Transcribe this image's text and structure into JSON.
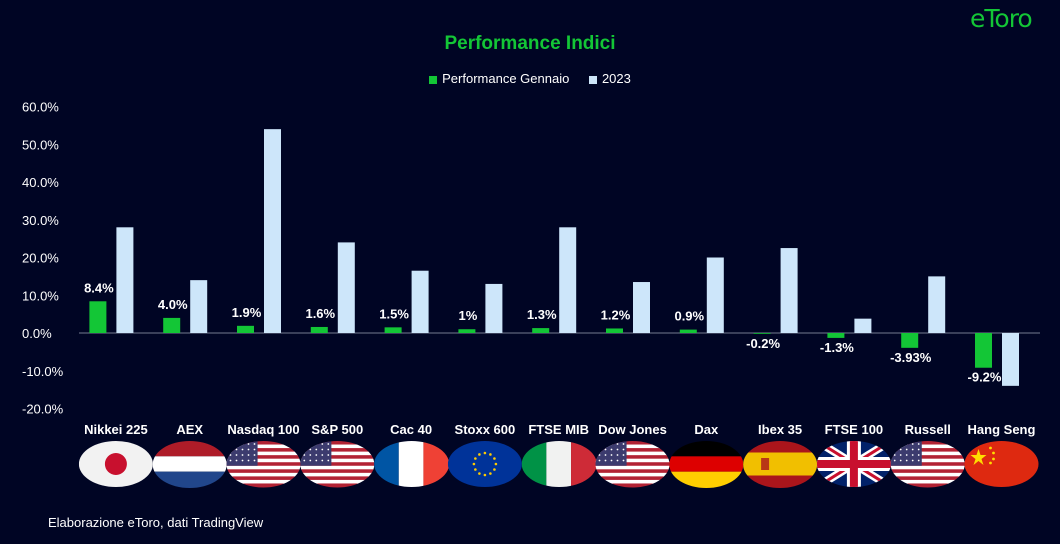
{
  "header": {
    "title": "Performance Indici",
    "logo": "eToro"
  },
  "legend": [
    {
      "label": "Performance Gennaio",
      "color": "#13c636"
    },
    {
      "label": "2023",
      "color": "#cde6fa"
    }
  ],
  "footer": {
    "source": "Elaborazione eToro, dati TradingView"
  },
  "chart_data": {
    "type": "bar",
    "title": "Performance Indici",
    "xlabel": "",
    "ylabel": "",
    "ylim": [
      -20,
      60
    ],
    "yticks": [
      "60.0%",
      "50.0%",
      "40.0%",
      "30.0%",
      "20.0%",
      "10.0%",
      "0.0%",
      "-10.0%",
      "-20.0%"
    ],
    "categories": [
      "Nikkei 225",
      "AEX",
      "Nasdaq 100",
      "S&P 500",
      "Cac 40",
      "Stoxx 600",
      "FTSE MIB",
      "Dow Jones",
      "Dax",
      "Ibex 35",
      "FTSE 100",
      "Russell 2000",
      "Hang Seng"
    ],
    "flags": [
      "japan",
      "netherlands",
      "usa",
      "usa",
      "france",
      "eu",
      "italy",
      "usa",
      "germany",
      "spain",
      "uk",
      "usa",
      "china"
    ],
    "series": [
      {
        "name": "Performance Gennaio",
        "color": "#13c636",
        "values": [
          8.4,
          4.0,
          1.9,
          1.6,
          1.5,
          1.0,
          1.3,
          1.2,
          0.9,
          -0.2,
          -1.3,
          -3.93,
          -9.2
        ],
        "labels": [
          "8.4%",
          "4.0%",
          "1.9%",
          "1.6%",
          "1.5%",
          "1%",
          "1.3%",
          "1.2%",
          "0.9%",
          "-0.2%",
          "-1.3%",
          "-3.93%",
          "-9.2%"
        ]
      },
      {
        "name": "2023",
        "color": "#cde6fa",
        "values": [
          28,
          14,
          54,
          24,
          16.5,
          13,
          28,
          13.5,
          20,
          22.5,
          3.8,
          15,
          -14
        ]
      }
    ],
    "grid": false,
    "legend_position": "top"
  }
}
